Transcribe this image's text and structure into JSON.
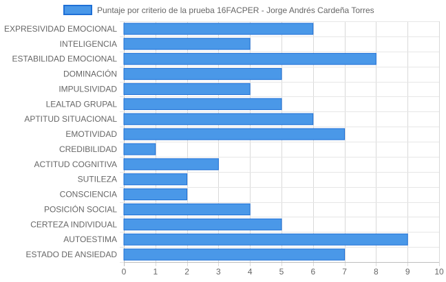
{
  "chart_data": {
    "type": "bar",
    "orientation": "horizontal",
    "legend": {
      "position": "top",
      "label": "Puntaje por criterio de la prueba 16FACPER - Jorge Andrés Cardeña Torres"
    },
    "series": [
      {
        "name": "Puntaje por criterio de la prueba 16FACPER - Jorge Andrés Cardeña Torres",
        "color": "#4a98e8",
        "border_color": "#1e6fd6",
        "values": [
          6,
          4,
          8,
          5,
          4,
          5,
          6,
          7,
          1,
          3,
          2,
          2,
          4,
          5,
          9,
          7
        ]
      }
    ],
    "categories": [
      "EXPRESIVIDAD EMOCIONAL",
      "INTELIGENCIA",
      "ESTABILIDAD EMOCIONAL",
      "DOMINACIÓN",
      "IMPULSIVIDAD",
      "LEALTAD GRUPAL",
      "APTITUD SITUACIONAL",
      "EMOTIVIDAD",
      "CREDIBILIDAD",
      "ACTITUD COGNITIVA",
      "SUTILEZA",
      "CONSCIENCIA",
      "POSICIÓN SOCIAL",
      "CERTEZA INDIVIDUAL",
      "AUTOESTIMA",
      "ESTADO DE ANSIEDAD"
    ],
    "xlim": [
      0,
      10
    ],
    "xticks": [
      "0",
      "1",
      "2",
      "3",
      "4",
      "5",
      "6",
      "7",
      "8",
      "9",
      "10"
    ],
    "grid": true
  }
}
